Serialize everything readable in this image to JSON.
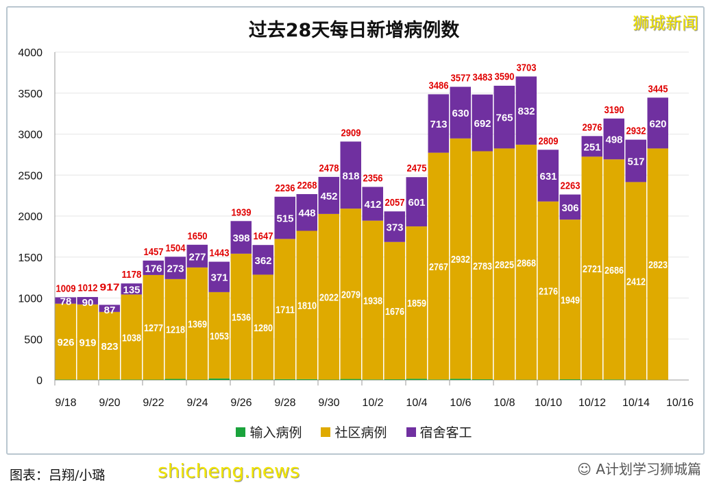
{
  "watermark": "狮城新闻",
  "caption": "图表：吕翔/小璐",
  "site_watermark": "shicheng.news",
  "wechat_mark": "A计划学习狮城篇",
  "chart_data": {
    "type": "bar",
    "stacked": true,
    "title": "过去28天每日新增病例数",
    "xlabel": "",
    "ylabel": "",
    "ylim": [
      0,
      4000
    ],
    "yticks": [
      0,
      500,
      1000,
      1500,
      2000,
      2500,
      3000,
      3500,
      4000
    ],
    "grid": true,
    "legend_position": "bottom",
    "categories": [
      "9/18",
      "9/19",
      "9/20",
      "9/21",
      "9/22",
      "9/23",
      "9/24",
      "9/25",
      "9/26",
      "9/27",
      "9/28",
      "9/29",
      "9/30",
      "10/1",
      "10/2",
      "10/3",
      "10/4",
      "10/5",
      "10/6",
      "10/7",
      "10/8",
      "10/9",
      "10/10",
      "10/11",
      "10/12",
      "10/13",
      "10/14",
      "10/15"
    ],
    "xtick_labels": [
      "9/18",
      "9/20",
      "9/22",
      "9/24",
      "9/26",
      "9/28",
      "9/30",
      "10/2",
      "10/4",
      "10/6",
      "10/8",
      "10/10",
      "10/12",
      "10/14",
      "10/16"
    ],
    "series": [
      {
        "name": "输入病例",
        "color": "#1aa33c",
        "values": [
          5,
          3,
          7,
          5,
          4,
          13,
          4,
          19,
          5,
          5,
          10,
          10,
          4,
          12,
          6,
          8,
          15,
          6,
          15,
          8,
          0,
          3,
          2,
          8,
          4,
          6,
          3,
          2
        ]
      },
      {
        "name": "社区病例",
        "color": "#dfaa00",
        "values": [
          926,
          919,
          823,
          1038,
          1277,
          1218,
          1369,
          1053,
          1536,
          1280,
          1711,
          1810,
          2022,
          2079,
          1938,
          1676,
          1859,
          2767,
          2932,
          2783,
          2825,
          2868,
          2176,
          1949,
          2721,
          2686,
          2412,
          2823
        ]
      },
      {
        "name": "宿舍客工",
        "color": "#7030a0",
        "values": [
          78,
          90,
          87,
          135,
          176,
          273,
          277,
          371,
          398,
          362,
          515,
          448,
          452,
          818,
          412,
          373,
          601,
          713,
          630,
          692,
          765,
          832,
          631,
          306,
          251,
          498,
          517,
          620
        ]
      }
    ],
    "totals": [
      1009,
      1012,
      917,
      1178,
      1457,
      1504,
      1650,
      1443,
      1939,
      1647,
      2236,
      2268,
      2478,
      2909,
      2356,
      2057,
      2475,
      3486,
      3577,
      3483,
      3590,
      3703,
      2809,
      2263,
      2976,
      3190,
      2932,
      3445
    ],
    "total_label_color": "#e00000"
  }
}
